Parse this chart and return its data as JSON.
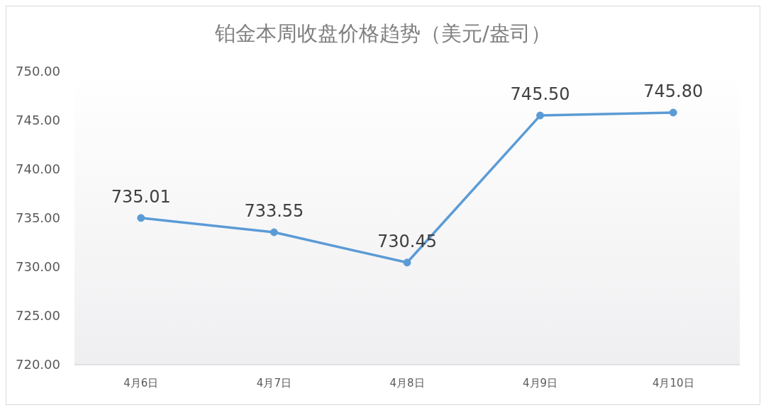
{
  "chart_data": {
    "type": "line",
    "title": "铂金本周收盘价格趋势（美元/盎司）",
    "categories": [
      "4月6日",
      "4月7日",
      "4月8日",
      "4月9日",
      "4月10日"
    ],
    "series": [
      {
        "color": "#5b9bd5",
        "values": [
          735.01,
          733.55,
          730.45,
          745.5,
          745.8
        ],
        "value_labels": [
          "735.01",
          "733.55",
          "730.45",
          "745.50",
          "745.80"
        ]
      }
    ],
    "ylim": [
      720,
      750
    ],
    "yticks": [
      {
        "value": 720,
        "label": "720.00"
      },
      {
        "value": 725,
        "label": "725.00"
      },
      {
        "value": 730,
        "label": "730.00"
      },
      {
        "value": 735,
        "label": "735.00"
      },
      {
        "value": 740,
        "label": "740.00"
      },
      {
        "value": 745,
        "label": "745.00"
      },
      {
        "value": 750,
        "label": "750.00"
      }
    ],
    "marker": "circle",
    "line_style": "solid",
    "grid": false,
    "legend": false
  }
}
